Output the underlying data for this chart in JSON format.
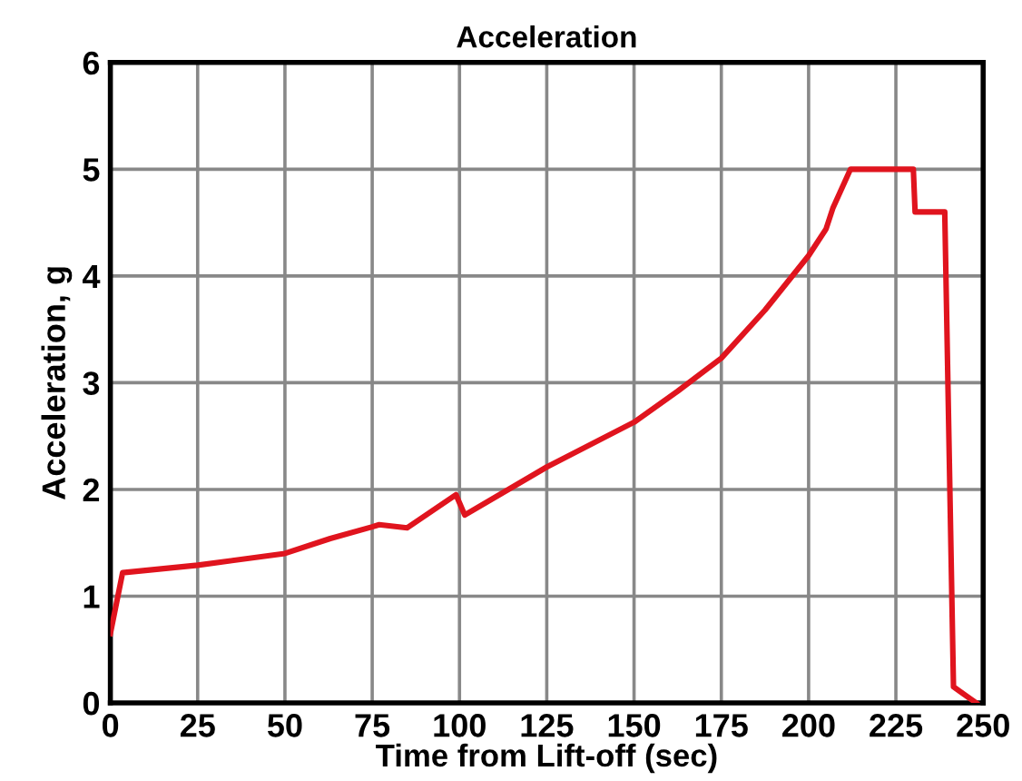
{
  "chart_data": {
    "type": "line",
    "title": "Acceleration",
    "xlabel": "Time from Lift-off (sec)",
    "ylabel": "Acceleration, g",
    "x": [
      0,
      3.5,
      25,
      50,
      63,
      75,
      77,
      85,
      99,
      101.5,
      125,
      150,
      162.5,
      175,
      187.5,
      200,
      205,
      207,
      212,
      230,
      230.5,
      239,
      241.5,
      248
    ],
    "series": [
      {
        "color": "#e0141e",
        "values": [
          0.65,
          1.22,
          1.29,
          1.4,
          1.54,
          1.65,
          1.67,
          1.64,
          1.95,
          1.76,
          2.21,
          2.63,
          2.92,
          3.23,
          3.68,
          4.19,
          4.44,
          4.64,
          5,
          5,
          4.6,
          4.6,
          0.15,
          0
        ]
      }
    ],
    "xlim": [
      0,
      250
    ],
    "ylim": [
      0,
      6
    ],
    "xticks": [
      0,
      25,
      50,
      75,
      100,
      125,
      150,
      175,
      200,
      225,
      250
    ],
    "yticks": [
      0,
      1,
      2,
      3,
      4,
      5,
      6
    ],
    "grid": true,
    "legend": false,
    "marker": "none",
    "line_style": "solid"
  }
}
